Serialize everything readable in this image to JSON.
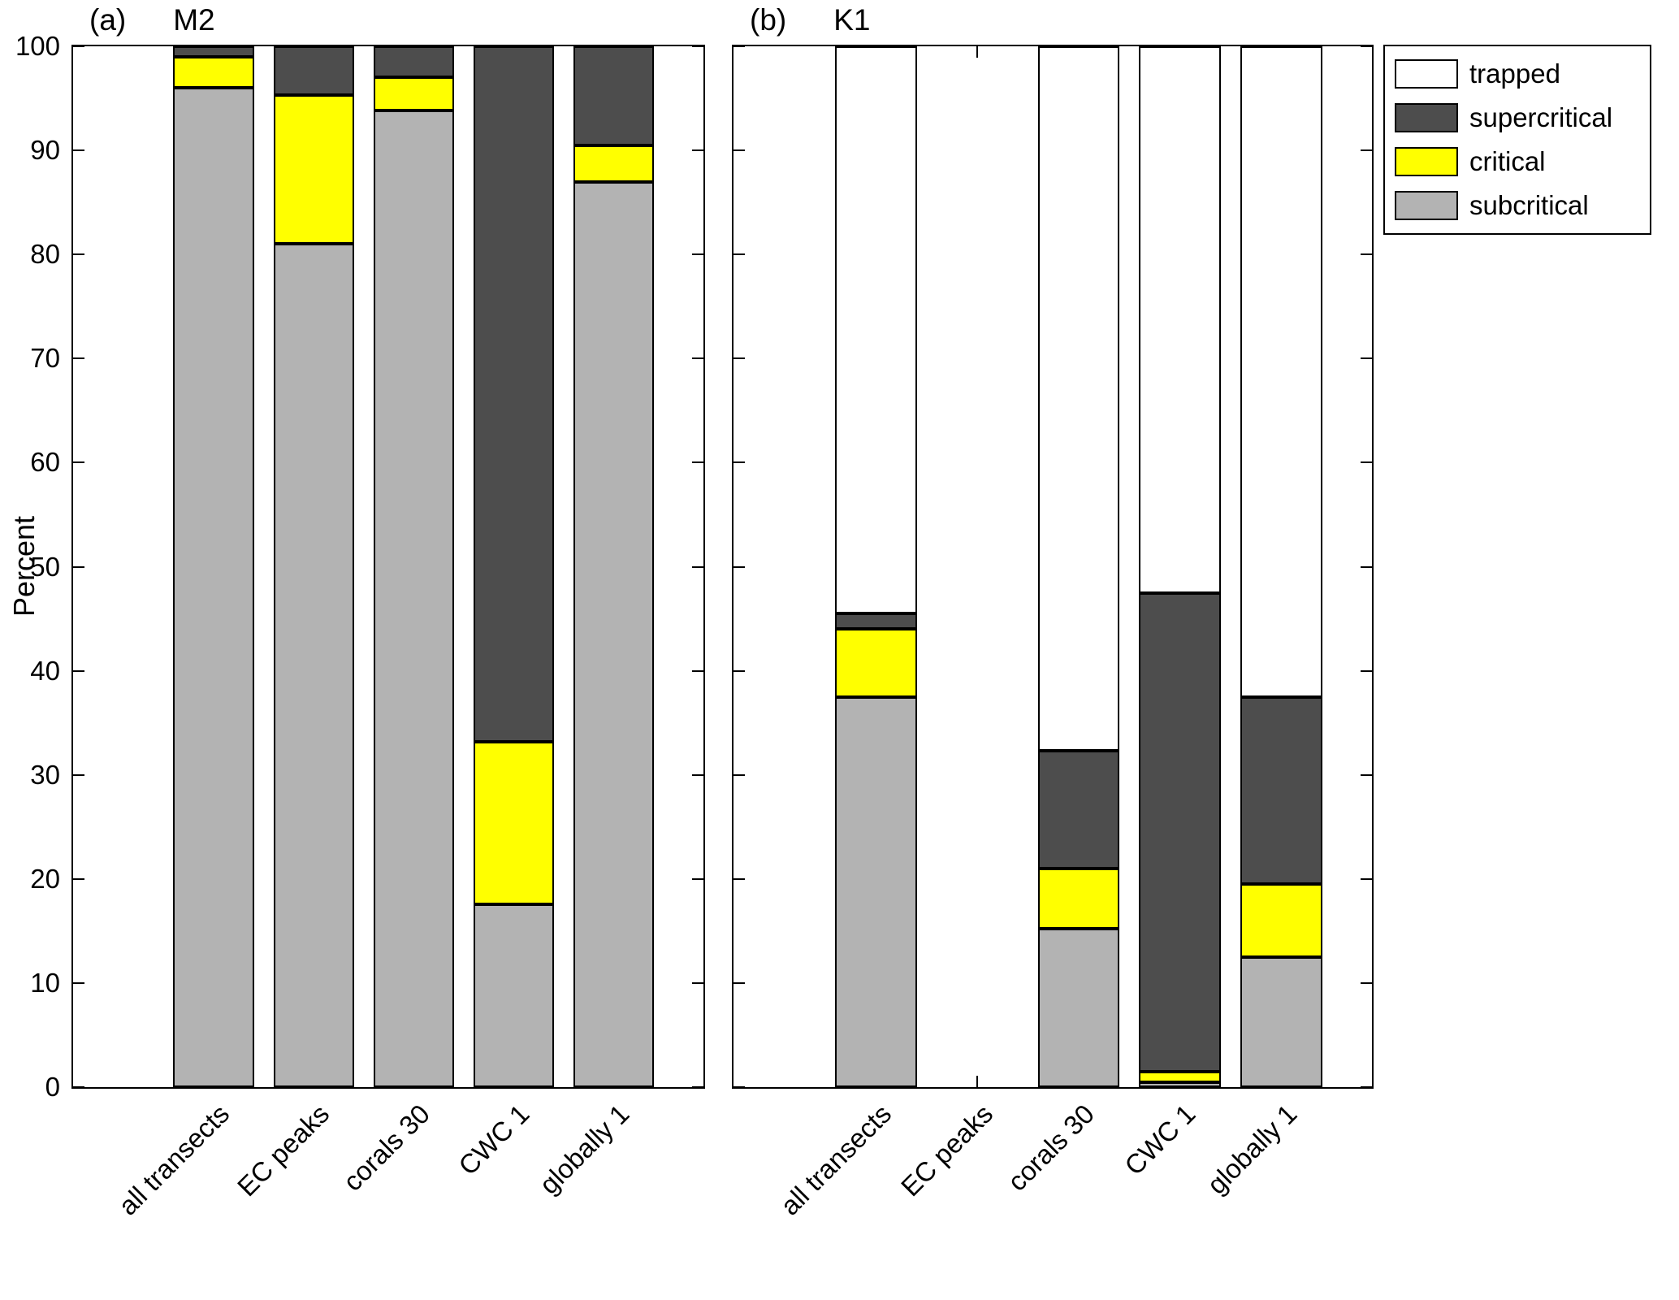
{
  "figure": {
    "ylabel": "Percent",
    "ylim": [
      0,
      100
    ],
    "yticks": [
      0,
      10,
      20,
      30,
      40,
      50,
      60,
      70,
      80,
      90,
      100
    ]
  },
  "legend": {
    "position": "outside-top-right",
    "items": [
      {
        "label": "trapped",
        "color": "#ffffff"
      },
      {
        "label": "supercritical",
        "color": "#4d4d4d"
      },
      {
        "label": "critical",
        "color": "#ffff00"
      },
      {
        "label": "subcritical",
        "color": "#b3b3b3"
      }
    ]
  },
  "chart_data": [
    {
      "type": "bar",
      "stacked": true,
      "title_letter": "(a)",
      "title": "M2",
      "ylabel": "Percent",
      "ylim": [
        0,
        100
      ],
      "grid": false,
      "categories": [
        "all transects",
        "EC peaks",
        "corals 30",
        "CWC 1",
        "globally 1"
      ],
      "series": [
        {
          "name": "subcritical",
          "color": "#b3b3b3",
          "values": [
            96,
            81,
            93.8,
            17.6,
            87
          ]
        },
        {
          "name": "critical",
          "color": "#ffff00",
          "values": [
            3,
            14.3,
            3.2,
            15.6,
            3.5
          ]
        },
        {
          "name": "supercritical",
          "color": "#4d4d4d",
          "values": [
            1,
            4.7,
            3.0,
            66.8,
            9.5
          ]
        },
        {
          "name": "trapped",
          "color": "#ffffff",
          "values": [
            0,
            0,
            0,
            0,
            0
          ]
        }
      ],
      "show_ytick_labels": true
    },
    {
      "type": "bar",
      "stacked": true,
      "title_letter": "(b)",
      "title": "K1",
      "ylabel": "Percent",
      "ylim": [
        0,
        100
      ],
      "grid": false,
      "categories": [
        "all transects",
        "EC peaks",
        "corals 30",
        "CWC 1",
        "globally 1"
      ],
      "series": [
        {
          "name": "subcritical",
          "color": "#b3b3b3",
          "values": [
            37.5,
            0,
            15.2,
            0.5,
            12.5
          ]
        },
        {
          "name": "critical",
          "color": "#ffff00",
          "values": [
            6.5,
            0,
            5.8,
            1.0,
            7.0
          ]
        },
        {
          "name": "supercritical",
          "color": "#4d4d4d",
          "values": [
            1.5,
            0,
            11.3,
            46.0,
            18.0
          ]
        },
        {
          "name": "trapped",
          "color": "#ffffff",
          "values": [
            54.5,
            0,
            67.7,
            52.5,
            62.5
          ]
        }
      ],
      "show_ytick_labels": false
    }
  ]
}
